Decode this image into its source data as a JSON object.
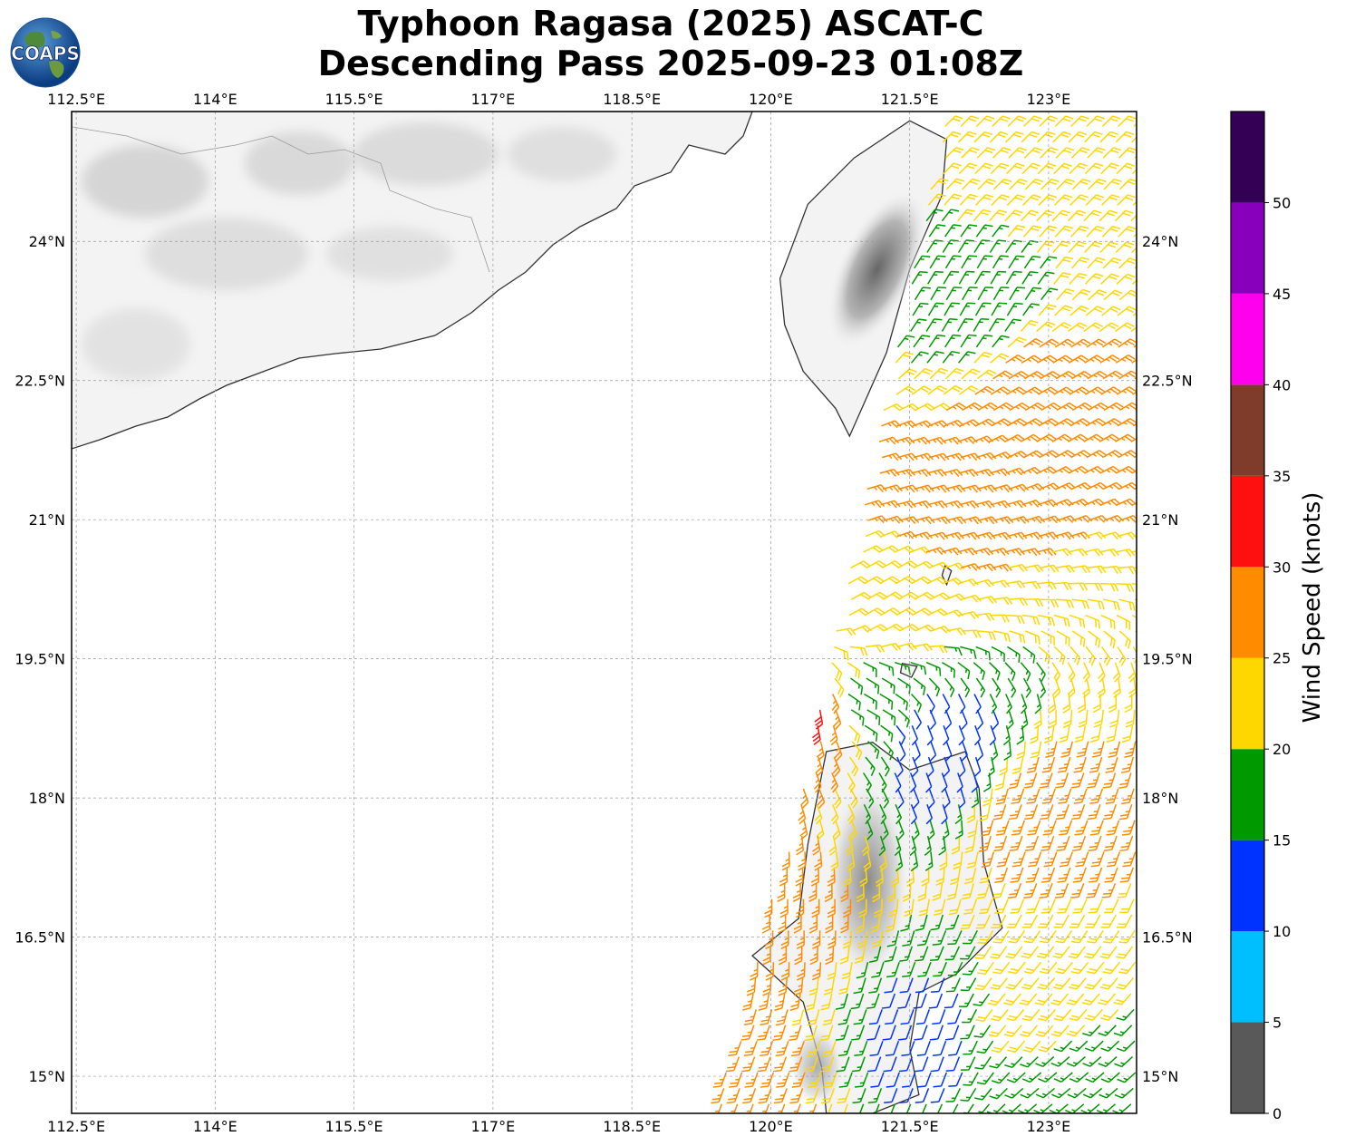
{
  "title": {
    "line1": "Typhoon Ragasa (2025) ASCAT-C",
    "line2": "Descending Pass 2025-09-23 01:08Z"
  },
  "logo": {
    "text": "COAPS",
    "icon": "globe-logo-icon"
  },
  "map": {
    "extent": {
      "lon_min": 112.45,
      "lon_max": 123.95,
      "lat_min": 14.6,
      "lat_max": 25.4
    },
    "lon_ticks": [
      {
        "value": 112.5,
        "label": "112.5°E"
      },
      {
        "value": 114.0,
        "label": "114°E"
      },
      {
        "value": 115.5,
        "label": "115.5°E"
      },
      {
        "value": 117.0,
        "label": "117°E"
      },
      {
        "value": 118.5,
        "label": "118.5°E"
      },
      {
        "value": 120.0,
        "label": "120°E"
      },
      {
        "value": 121.5,
        "label": "121.5°E"
      },
      {
        "value": 123.0,
        "label": "123°E"
      }
    ],
    "lat_ticks": [
      {
        "value": 24.0,
        "label": "24°N"
      },
      {
        "value": 22.5,
        "label": "22.5°N"
      },
      {
        "value": 21.0,
        "label": "21°N"
      },
      {
        "value": 19.5,
        "label": "19.5°N"
      },
      {
        "value": 18.0,
        "label": "18°N"
      },
      {
        "value": 16.5,
        "label": "16.5°N"
      },
      {
        "value": 15.0,
        "label": "15°N"
      }
    ],
    "grid": true,
    "land_color": "#f2f2f2",
    "coast_color": "#333333"
  },
  "colorbar": {
    "label": "Wind Speed (knots)",
    "ticks": [
      "0",
      "5",
      "10",
      "15",
      "20",
      "25",
      "30",
      "35",
      "40",
      "45",
      "50"
    ],
    "bins": [
      {
        "from": 0,
        "to": 5,
        "color": "#595959"
      },
      {
        "from": 5,
        "to": 10,
        "color": "#00bfff"
      },
      {
        "from": 10,
        "to": 15,
        "color": "#0033ff"
      },
      {
        "from": 15,
        "to": 20,
        "color": "#009900"
      },
      {
        "from": 20,
        "to": 25,
        "color": "#ffd700"
      },
      {
        "from": 25,
        "to": 30,
        "color": "#ff8c00"
      },
      {
        "from": 30,
        "to": 35,
        "color": "#ff1010"
      },
      {
        "from": 35,
        "to": 40,
        "color": "#803c2a"
      },
      {
        "from": 40,
        "to": 45,
        "color": "#ff00ee"
      },
      {
        "from": 45,
        "to": 50,
        "color": "#8800bb"
      },
      {
        "from": 50,
        "to": 55,
        "color": "#330055"
      }
    ]
  },
  "wind_field": {
    "swath": [
      [
        121.9,
        25.4
      ],
      [
        124.0,
        25.4
      ],
      [
        124.0,
        14.6
      ],
      [
        119.4,
        14.6
      ],
      [
        120.4,
        18.4
      ],
      [
        121.2,
        22.3
      ]
    ],
    "samples": [
      {
        "lon": 122.7,
        "lat": 24.8,
        "speed": 23,
        "dir": 45
      },
      {
        "lon": 122.2,
        "lat": 23.3,
        "speed": 17,
        "dir": 30
      },
      {
        "lon": 122.8,
        "lat": 22.4,
        "speed": 27,
        "dir": 60
      },
      {
        "lon": 121.8,
        "lat": 21.2,
        "speed": 27,
        "dir": 75
      },
      {
        "lon": 121.2,
        "lat": 20.1,
        "speed": 22,
        "dir": 60
      },
      {
        "lon": 120.5,
        "lat": 18.9,
        "speed": 31,
        "dir": 170
      },
      {
        "lon": 121.0,
        "lat": 19.0,
        "speed": 17,
        "dir": 120
      },
      {
        "lon": 121.7,
        "lat": 18.6,
        "speed": 12,
        "dir": 160
      },
      {
        "lon": 123.0,
        "lat": 17.8,
        "speed": 27,
        "dir": 200
      },
      {
        "lon": 120.0,
        "lat": 16.8,
        "speed": 27,
        "dir": 180
      },
      {
        "lon": 122.9,
        "lat": 15.7,
        "speed": 22,
        "dir": 220
      },
      {
        "lon": 123.2,
        "lat": 14.9,
        "speed": 17,
        "dir": 230
      },
      {
        "lon": 121.7,
        "lat": 15.5,
        "speed": 14,
        "dir": 200
      },
      {
        "lon": 119.8,
        "lat": 15.0,
        "speed": 26,
        "dir": 200
      }
    ]
  },
  "islands": [
    {
      "name": "taiwan",
      "coords": [
        [
          121.5,
          25.3
        ],
        [
          121.9,
          25.1
        ],
        [
          121.85,
          24.5
        ],
        [
          121.5,
          23.7
        ],
        [
          121.25,
          22.8
        ],
        [
          120.85,
          21.9
        ],
        [
          120.7,
          22.2
        ],
        [
          120.35,
          22.6
        ],
        [
          120.15,
          23.1
        ],
        [
          120.1,
          23.6
        ],
        [
          120.4,
          24.4
        ],
        [
          120.9,
          24.9
        ]
      ]
    },
    {
      "name": "luzon",
      "coords": [
        [
          120.6,
          18.5
        ],
        [
          121.1,
          18.6
        ],
        [
          121.5,
          18.3
        ],
        [
          122.1,
          18.5
        ],
        [
          122.25,
          18.1
        ],
        [
          122.3,
          17.3
        ],
        [
          122.5,
          16.6
        ],
        [
          122.0,
          16.1
        ],
        [
          121.6,
          15.9
        ],
        [
          121.5,
          15.3
        ],
        [
          121.6,
          14.8
        ],
        [
          121.1,
          14.6
        ],
        [
          120.6,
          14.6
        ],
        [
          120.55,
          15.1
        ],
        [
          120.35,
          15.8
        ],
        [
          119.8,
          16.3
        ],
        [
          120.3,
          16.7
        ],
        [
          120.4,
          17.5
        ]
      ]
    },
    {
      "name": "babuyan",
      "coords": [
        [
          121.42,
          19.45
        ],
        [
          121.58,
          19.42
        ],
        [
          121.52,
          19.3
        ],
        [
          121.4,
          19.35
        ]
      ]
    },
    {
      "name": "batanes",
      "coords": [
        [
          121.88,
          20.5
        ],
        [
          121.95,
          20.45
        ],
        [
          121.9,
          20.3
        ],
        [
          121.85,
          20.4
        ]
      ]
    }
  ]
}
